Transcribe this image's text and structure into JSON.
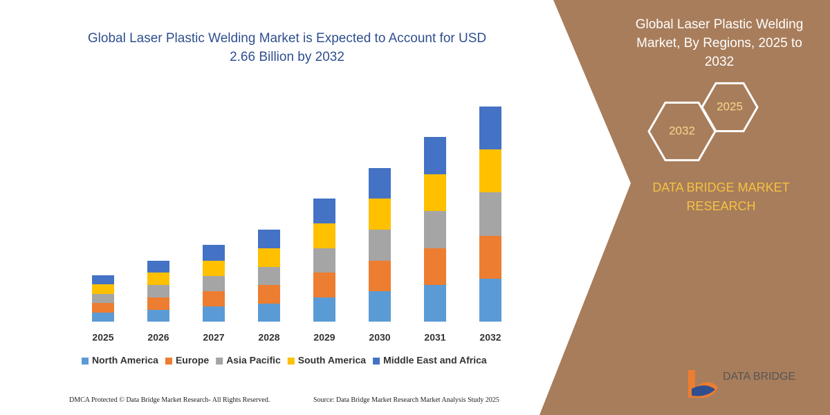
{
  "chart_data": {
    "type": "stacked_bar",
    "title": "Global Laser Plastic Welding Market is Expected to Account for USD 2.66 Billion by 2032",
    "categories": [
      "2025",
      "2026",
      "2027",
      "2028",
      "2029",
      "2030",
      "2031",
      "2032"
    ],
    "series": [
      {
        "name": "North America",
        "color": "#5b9bd5",
        "values": [
          13,
          17,
          22,
          26,
          35,
          44,
          53,
          62
        ]
      },
      {
        "name": "Europe",
        "color": "#ed7d31",
        "values": [
          14,
          18,
          22,
          27,
          36,
          44,
          53,
          62
        ]
      },
      {
        "name": "Asia Pacific",
        "color": "#a5a5a5",
        "values": [
          13,
          18,
          22,
          26,
          35,
          45,
          54,
          63
        ]
      },
      {
        "name": "South America",
        "color": "#ffc000",
        "values": [
          14,
          18,
          22,
          27,
          36,
          45,
          53,
          62
        ]
      },
      {
        "name": "Middle East and Africa",
        "color": "#4472c4",
        "values": [
          13,
          17,
          23,
          27,
          36,
          44,
          54,
          62
        ]
      }
    ]
  },
  "side_panel": {
    "title": "Global Laser Plastic Welding Market, By Regions, 2025 to 2032",
    "hexagons": [
      "2032",
      "2025"
    ],
    "brand": "DATA BRIDGE MARKET RESEARCH",
    "logo": "DATA BRIDGE"
  },
  "footer": {
    "left": "DMCA Protected © Data Bridge Market Research-  All Rights Reserved.",
    "right": "Source: Data Bridge Market Research  Market Analysis Study 2025"
  }
}
